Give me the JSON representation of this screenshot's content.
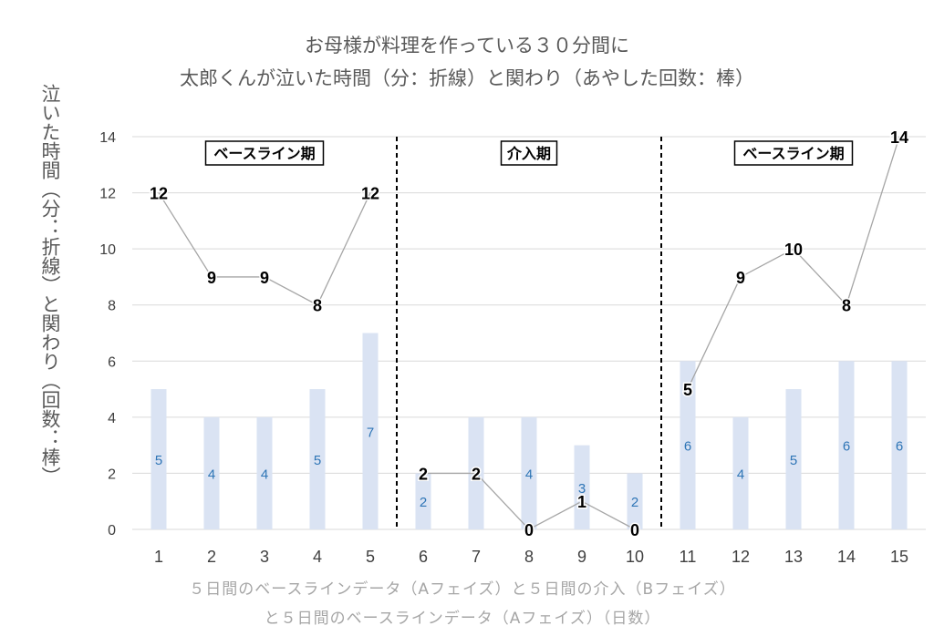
{
  "chart_data": {
    "type": "bar+line",
    "title_lines": [
      "お母様が料理を作っている３０分間に",
      "太郎くんが泣いた時間（分：折線）と関わり（あやした回数：棒）"
    ],
    "xlabel_lines": [
      "５日間のベースラインデータ（Aフェイズ）と５日間の介入（Bフェイズ）",
      "と５日間のベースラインデータ（Aフェイズ）（日数）"
    ],
    "ylabel": "泣いた時間（分：折線）と関わり（回数：棒）",
    "categories": [
      "1",
      "2",
      "3",
      "4",
      "5",
      "6",
      "7",
      "8",
      "9",
      "10",
      "11",
      "12",
      "13",
      "14",
      "15"
    ],
    "y_ticks": [
      "0",
      "2",
      "4",
      "6",
      "8",
      "10",
      "12",
      "14"
    ],
    "ylim": [
      0,
      14
    ],
    "series": [
      {
        "kind": "bar",
        "values": [
          5,
          4,
          4,
          5,
          7,
          2,
          4,
          4,
          3,
          2,
          6,
          4,
          5,
          6,
          6
        ]
      },
      {
        "kind": "line",
        "values": [
          12,
          9,
          9,
          8,
          12,
          2,
          2,
          0,
          1,
          0,
          5,
          9,
          10,
          8,
          14
        ]
      }
    ],
    "phases": [
      {
        "label": "ベースライン期",
        "from": 1,
        "to": 5
      },
      {
        "label": "介入期",
        "from": 6,
        "to": 10
      },
      {
        "label": "ベースライン期",
        "from": 11,
        "to": 15
      }
    ],
    "bar_value_labels": [
      "5",
      "4",
      "4",
      "5",
      "7",
      "2",
      "4",
      "4",
      "3",
      "2",
      "6",
      "4",
      "5",
      "6",
      "6"
    ],
    "line_value_labels": [
      "12",
      "9",
      "9",
      "8",
      "12",
      "2",
      "2",
      "0",
      "1",
      "0",
      "5",
      "9",
      "10",
      "8",
      "14"
    ],
    "grid": true,
    "colors": {
      "bar": "#dae3f3",
      "bar_label": "#2e75b6",
      "line": "#a6a6a6",
      "grid": "#d9d9d9",
      "phase_divider": "#000000"
    }
  }
}
